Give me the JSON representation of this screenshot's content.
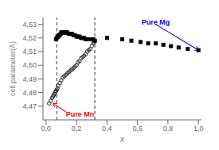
{
  "chart_data": {
    "type": "scatter",
    "xlabel": "x",
    "ylabel": "cell parameter(Å)",
    "xlim": [
      -0.02,
      1.02
    ],
    "ylim": [
      4.46,
      4.535
    ],
    "xticks": [
      {
        "value": 0.0,
        "label": "0,0"
      },
      {
        "value": 0.2,
        "label": "0,2"
      },
      {
        "value": 0.4,
        "label": "0,4"
      },
      {
        "value": 0.6,
        "label": "0,6"
      },
      {
        "value": 0.8,
        "label": "0,8"
      },
      {
        "value": 1.0,
        "label": "1,0"
      }
    ],
    "yticks": [
      {
        "value": 4.47,
        "label": "4,47"
      },
      {
        "value": 4.48,
        "label": "4,48"
      },
      {
        "value": 4.49,
        "label": "4,49"
      },
      {
        "value": 4.5,
        "label": "4,50"
      },
      {
        "value": 4.51,
        "label": "4,51"
      },
      {
        "value": 4.52,
        "label": "4,52"
      },
      {
        "value": 4.53,
        "label": "4,53"
      }
    ],
    "vlines": [
      0.07,
      0.32
    ],
    "series": [
      {
        "color": "black",
        "marker": "open_circle",
        "x": [
          0.02,
          0.03,
          0.04,
          0.045,
          0.05,
          0.055,
          0.06,
          0.065,
          0.07,
          0.075,
          0.08,
          0.09,
          0.1,
          0.11,
          0.12,
          0.13,
          0.14,
          0.15,
          0.16,
          0.17,
          0.18,
          0.19,
          0.2,
          0.21,
          0.22,
          0.23,
          0.24,
          0.25,
          0.26,
          0.27,
          0.28,
          0.29,
          0.3,
          0.31,
          0.315,
          0.32
        ],
        "values": [
          4.472,
          4.474,
          4.476,
          4.477,
          4.478,
          4.479,
          4.48,
          4.481,
          4.482,
          4.483,
          4.485,
          4.487,
          4.489,
          4.491,
          4.492,
          4.493,
          4.494,
          4.495,
          4.496,
          4.497,
          4.498,
          4.499,
          4.5,
          4.502,
          4.503,
          4.505,
          4.506,
          4.507,
          4.508,
          4.51,
          4.511,
          4.512,
          4.514,
          4.516,
          4.517,
          4.518
        ]
      },
      {
        "color": "black",
        "marker": "filled_square",
        "x": [
          0.065,
          0.07,
          0.075,
          0.08,
          0.085,
          0.09,
          0.095,
          0.1,
          0.105,
          0.11,
          0.115,
          0.12,
          0.125,
          0.13,
          0.135,
          0.14,
          0.15,
          0.16,
          0.17,
          0.18,
          0.19,
          0.2,
          0.21,
          0.22,
          0.23,
          0.24,
          0.25,
          0.26,
          0.27,
          0.28,
          0.29,
          0.3,
          0.31,
          0.32,
          0.4,
          0.5,
          0.56,
          0.62,
          0.67,
          0.72,
          0.77,
          0.82,
          0.87,
          0.93,
          1.0
        ],
        "values": [
          4.519,
          4.52,
          4.521,
          4.521,
          4.522,
          4.522,
          4.523,
          4.524,
          4.524,
          4.524,
          4.524,
          4.524,
          4.524,
          4.524,
          4.524,
          4.524,
          4.523,
          4.523,
          4.523,
          4.522,
          4.522,
          4.521,
          4.521,
          4.521,
          4.52,
          4.52,
          4.52,
          4.519,
          4.519,
          4.519,
          4.519,
          4.519,
          4.519,
          4.518,
          4.52,
          4.519,
          4.518,
          4.517,
          4.516,
          4.516,
          4.515,
          4.514,
          4.513,
          4.512,
          4.511
        ]
      }
    ],
    "annotations": [
      {
        "text": "Pure Mn",
        "x": 0.13,
        "y": 4.466,
        "arrow_x": 0.045,
        "arrow_y": 4.472,
        "color": "red"
      },
      {
        "text": "Pure Mg",
        "x": 0.72,
        "y": 4.53,
        "arrow_x": 1.0,
        "arrow_y": 4.511,
        "color": "blue"
      }
    ]
  }
}
